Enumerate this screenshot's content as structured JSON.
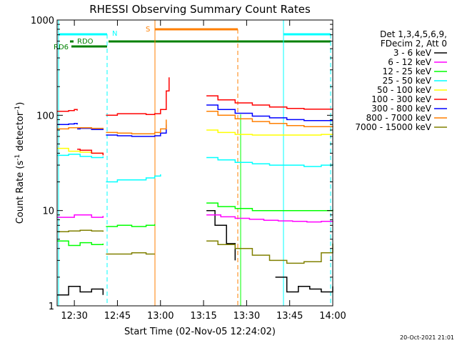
{
  "chart_data": {
    "type": "line",
    "title": "RHESSI Observing Summary Count Rates",
    "xlabel": "Start Time (02-Nov-05 12:24:02)",
    "ylabel": "Count Rate (s",
    "ylabel_sup1": "-1",
    "ylabel_mid": " detector",
    "ylabel_sup2": "-1",
    "ylabel_end": ")",
    "y_scale": "log",
    "ylim": [
      1,
      1000
    ],
    "xlim": [
      744,
      840
    ],
    "x_tick_values": [
      750,
      765,
      780,
      795,
      810,
      825,
      840
    ],
    "x_tick_labels": [
      "12:30",
      "12:45",
      "13:00",
      "13:15",
      "13:30",
      "13:45",
      "14:00"
    ],
    "y_tick_values": [
      1,
      10,
      100,
      1000
    ],
    "y_tick_labels": [
      "1",
      "10",
      "100",
      "1000"
    ],
    "timestamp": "20-Oct-2021 21:01",
    "legend_header": [
      "Det 1,3,4,5,6,9,",
      "FDecim 2, Att 0"
    ],
    "series": [
      {
        "name": "3 - 6 keV",
        "color": "#000000",
        "segments": [
          {
            "x": [
              744,
              748,
              752,
              756,
              760
            ],
            "y": [
              1.3,
              1.6,
              1.4,
              1.5,
              1.3
            ]
          },
          {
            "x": [
              796,
              799,
              803,
              806
            ],
            "y": [
              10,
              7,
              4.5,
              3
            ]
          },
          {
            "x": [
              820,
              824,
              828,
              832,
              836,
              840
            ],
            "y": [
              2,
              1.4,
              1.6,
              1.5,
              1.4,
              1.6
            ]
          }
        ]
      },
      {
        "name": "6 - 12 keV",
        "color": "#ff00ff",
        "segments": [
          {
            "x": [
              744,
              750,
              756,
              760
            ],
            "y": [
              8.5,
              9,
              8.5,
              8.8
            ]
          },
          {
            "x": [
              796,
              801,
              806,
              811,
              816,
              821,
              826,
              831,
              836,
              840
            ],
            "y": [
              9,
              8.6,
              8.3,
              8.1,
              7.9,
              7.8,
              7.7,
              7.6,
              7.7,
              7.8
            ]
          }
        ]
      },
      {
        "name": "12 - 25 keV",
        "color": "#00ff00",
        "segments": [
          {
            "x": [
              744,
              748,
              752,
              756,
              760
            ],
            "y": [
              4.8,
              4.3,
              4.6,
              4.4,
              4.5
            ]
          },
          {
            "x": [
              761,
              765,
              770,
              775,
              778
            ],
            "y": [
              6.8,
              7,
              6.8,
              7,
              7.2
            ]
          },
          {
            "x": [
              796,
              800,
              806,
              812,
              818,
              824,
              830,
              836,
              840
            ],
            "y": [
              12,
              11,
              10.5,
              10,
              10,
              10,
              10,
              10,
              10.2
            ]
          }
        ]
      },
      {
        "name": "25 - 50 keV",
        "color": "#00ffff",
        "segments": [
          {
            "x": [
              744,
              748,
              752,
              756,
              760
            ],
            "y": [
              38,
              39,
              37,
              36,
              37
            ]
          },
          {
            "x": [
              761,
              765,
              770,
              775,
              778,
              780
            ],
            "y": [
              20,
              21,
              21,
              22,
              23,
              24
            ]
          },
          {
            "x": [
              796,
              800,
              806,
              812,
              818,
              824,
              830,
              836,
              840
            ],
            "y": [
              36,
              34,
              32,
              31,
              30,
              30,
              29,
              30,
              31
            ]
          }
        ]
      },
      {
        "name": "50 - 100 keV",
        "color": "#ffff00",
        "segments": [
          {
            "x": [
              744,
              748,
              752,
              756,
              760
            ],
            "y": [
              45,
              42,
              41,
              40,
              39
            ]
          },
          {
            "x": [
              796,
              800,
              806,
              812,
              818,
              824,
              830,
              836,
              840
            ],
            "y": [
              70,
              66,
              63,
              62,
              62,
              62,
              62,
              63,
              64
            ]
          }
        ]
      },
      {
        "name": "100 - 300 keV",
        "color": "#ff0000",
        "segments": [
          {
            "x": [
              744,
              748,
              750,
              751
            ],
            "y": [
              110,
              112,
              115,
              112
            ]
          },
          {
            "x": [
              751,
              752,
              756,
              760
            ],
            "y": [
              44,
              43,
              40,
              38
            ]
          },
          {
            "x": [
              761,
              765,
              770,
              775,
              778,
              780,
              782,
              783
            ],
            "y": [
              100,
              104,
              104,
              102,
              104,
              115,
              180,
              250
            ]
          },
          {
            "x": [
              796,
              800,
              806,
              812,
              818,
              824,
              830,
              836,
              840
            ],
            "y": [
              160,
              145,
              135,
              128,
              122,
              118,
              116,
              116,
              118
            ]
          }
        ]
      },
      {
        "name": "300 - 800 keV",
        "color": "#0000ff",
        "segments": [
          {
            "x": [
              744,
              748,
              750,
              751
            ],
            "y": [
              80,
              81,
              82,
              80
            ]
          },
          {
            "x": [
              751,
              752,
              756,
              760
            ],
            "y": [
              72,
              73,
              71,
              70
            ]
          },
          {
            "x": [
              761,
              765,
              770,
              775,
              778,
              780,
              782
            ],
            "y": [
              62,
              61,
              60,
              60,
              61,
              65,
              80
            ]
          },
          {
            "x": [
              796,
              800,
              806,
              812,
              818,
              824,
              830,
              836,
              840
            ],
            "y": [
              128,
              115,
              105,
              98,
              94,
              90,
              88,
              88,
              88
            ]
          }
        ]
      },
      {
        "name": "800 - 7000 keV",
        "color": "#ff7f00",
        "segments": [
          {
            "x": [
              744,
              748,
              752,
              756,
              760
            ],
            "y": [
              72,
              74,
              74,
              73,
              72
            ]
          },
          {
            "x": [
              761,
              765,
              770,
              775,
              778,
              780,
              782
            ],
            "y": [
              66,
              65,
              64,
              64,
              66,
              72,
              90
            ]
          },
          {
            "x": [
              796,
              800,
              806,
              812,
              818,
              824,
              830,
              836,
              840
            ],
            "y": [
              110,
              100,
              92,
              86,
              82,
              78,
              76,
              76,
              77
            ]
          }
        ]
      },
      {
        "name": "7000 - 15000 keV",
        "color": "#808000",
        "segments": [
          {
            "x": [
              744,
              748,
              752,
              756,
              760
            ],
            "y": [
              6,
              6.1,
              6.2,
              6.1,
              6
            ]
          },
          {
            "x": [
              761,
              765,
              770,
              775,
              778
            ],
            "y": [
              3.5,
              3.5,
              3.6,
              3.5,
              3.5
            ]
          },
          {
            "x": [
              796,
              800,
              806,
              812,
              818,
              824,
              830,
              836,
              840
            ],
            "y": [
              4.8,
              4.4,
              4.0,
              3.4,
              3.0,
              2.8,
              2.9,
              3.6,
              4.5
            ]
          }
        ]
      }
    ],
    "bar_labels": [
      {
        "label": "RD6",
        "color": "#008000"
      },
      {
        "label": "RDO",
        "color": "#008000"
      },
      {
        "label": "N",
        "color": "#00ffff"
      },
      {
        "label": "S",
        "color": "#ff7f00"
      }
    ]
  }
}
